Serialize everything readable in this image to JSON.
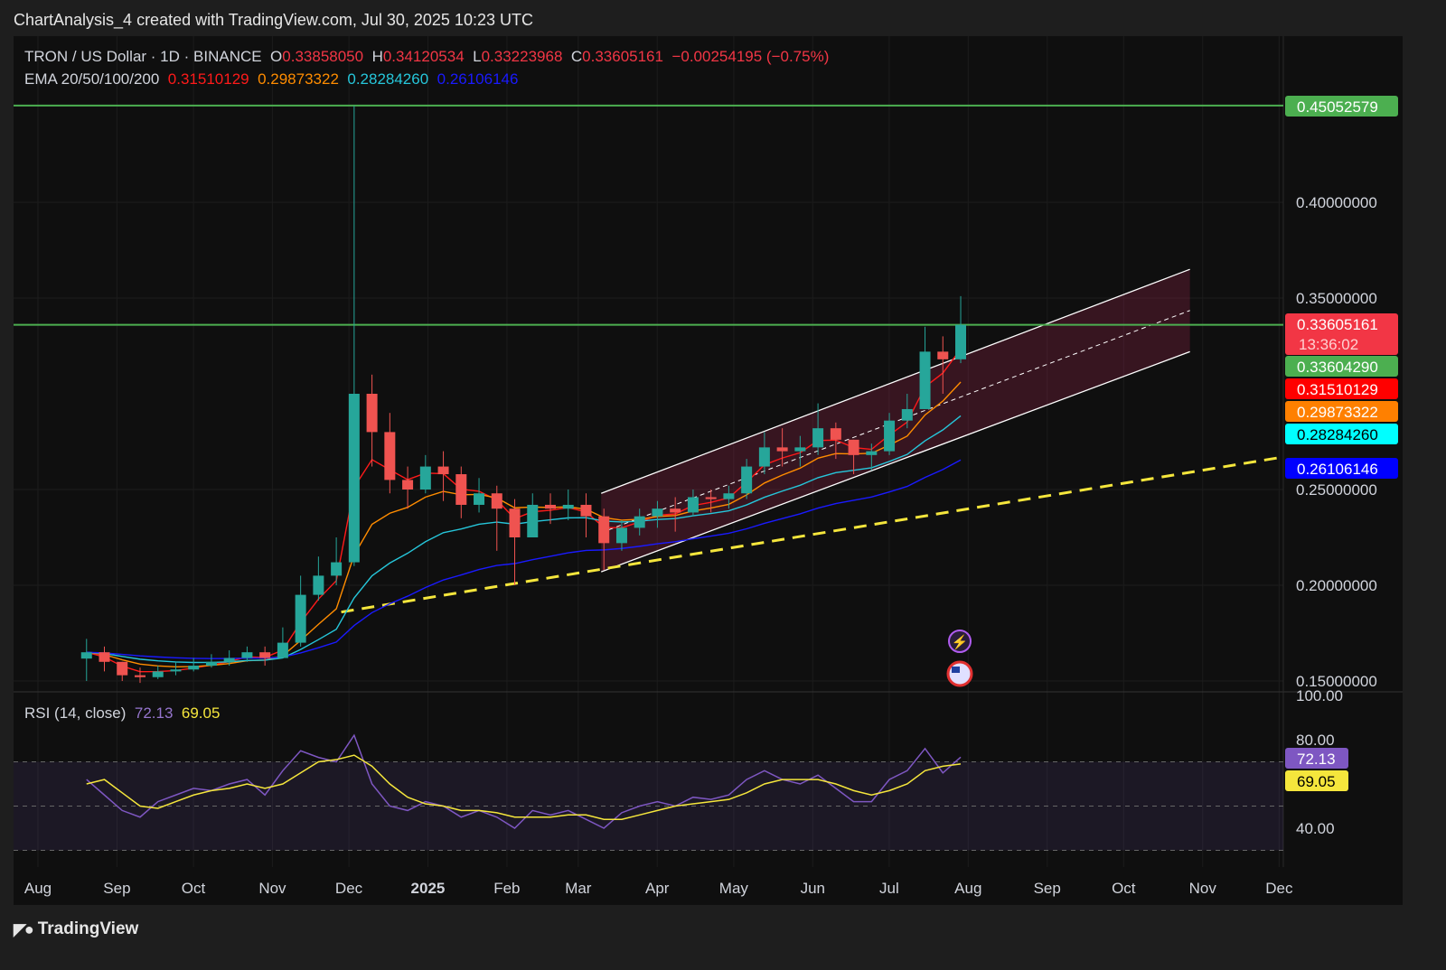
{
  "header": {
    "title": "ChartAnalysis_4 created with TradingView.com, Jul 30, 2025 10:23 UTC"
  },
  "legend": {
    "symbol": "TRON / US Dollar · 1D · BINANCE",
    "o_label": "O",
    "o": "0.33858050",
    "h_label": "H",
    "h": "0.34120534",
    "l_label": "L",
    "l": "0.33223968",
    "c_label": "C",
    "c": "0.33605161",
    "change": "−0.00254195 (−0.75%)",
    "ema_label": "EMA 20/50/100/200",
    "ema20": "0.31510129",
    "ema50": "0.29873322",
    "ema100": "0.28284260",
    "ema200": "0.26106146",
    "rsi_label": "RSI (14, close)",
    "rsi": "72.13",
    "rsi_ma": "69.05"
  },
  "footer": {
    "brand": "TradingView"
  },
  "colors": {
    "up": "#26a69a",
    "down": "#ef5350",
    "ema20": "#ff1a1a",
    "ema50": "#ff8c00",
    "ema100": "#26c6da",
    "ema200": "#1a1aff",
    "support": "#f5e63c",
    "level": "#4caf50",
    "rsi": "#7e57c2",
    "rsi_ma": "#f5e63c",
    "channel": "#ffffff"
  },
  "price_tags": [
    {
      "value": "0.45052579",
      "bg": "#4caf50",
      "fg": "#ffffff"
    },
    {
      "value": "0.33605161",
      "sub": "13:36:02",
      "bg": "#f23645",
      "fg": "#ffffff"
    },
    {
      "value": "0.33604290",
      "bg": "#4caf50",
      "fg": "#ffffff"
    },
    {
      "value": "0.31510129",
      "bg": "#ff0000",
      "fg": "#ffffff"
    },
    {
      "value": "0.29873322",
      "bg": "#ff8000",
      "fg": "#ffffff"
    },
    {
      "value": "0.28284260",
      "bg": "#00ffff",
      "fg": "#000000"
    },
    {
      "value": "0.26106146",
      "bg": "#0000ff",
      "fg": "#ffffff"
    }
  ],
  "rsi_tags": [
    {
      "value": "72.13",
      "bg": "#7e57c2",
      "fg": "#ffffff"
    },
    {
      "value": "69.05",
      "bg": "#f5e63c",
      "fg": "#000000"
    }
  ],
  "icons": [
    "lightning-event-icon",
    "us-flag-event-icon"
  ],
  "chart_data": {
    "type": "candlestick",
    "title": "TRON / US Dollar · 1D · BINANCE",
    "y_ticks": [
      "0.15000000",
      "0.20000000",
      "0.25000000",
      "0.35000000",
      "0.40000000"
    ],
    "x_ticks": [
      "Aug",
      "Sep",
      "Oct",
      "Nov",
      "Dec",
      "2025",
      "Feb",
      "Mar",
      "Apr",
      "May",
      "Jun",
      "Jul",
      "Aug",
      "Sep",
      "Oct",
      "Nov",
      "Dec"
    ],
    "ylim": [
      0.15,
      0.46
    ],
    "grid": true,
    "dates": [
      "2024-08-19",
      "2024-08-26",
      "2024-09-02",
      "2024-09-09",
      "2024-09-16",
      "2024-09-23",
      "2024-09-30",
      "2024-10-07",
      "2024-10-14",
      "2024-10-21",
      "2024-10-28",
      "2024-11-04",
      "2024-11-11",
      "2024-11-18",
      "2024-11-25",
      "2024-12-02",
      "2024-12-09",
      "2024-12-16",
      "2024-12-23",
      "2024-12-30",
      "2025-01-06",
      "2025-01-13",
      "2025-01-20",
      "2025-01-27",
      "2025-02-03",
      "2025-02-10",
      "2025-02-17",
      "2025-02-24",
      "2025-03-03",
      "2025-03-10",
      "2025-03-17",
      "2025-03-24",
      "2025-03-31",
      "2025-04-07",
      "2025-04-14",
      "2025-04-21",
      "2025-04-28",
      "2025-05-05",
      "2025-05-12",
      "2025-05-19",
      "2025-05-26",
      "2025-06-02",
      "2025-06-09",
      "2025-06-16",
      "2025-06-23",
      "2025-06-30",
      "2025-07-07",
      "2025-07-14",
      "2025-07-21",
      "2025-07-28"
    ],
    "close": [
      0.165,
      0.16,
      0.153,
      0.152,
      0.155,
      0.156,
      0.158,
      0.16,
      0.162,
      0.165,
      0.162,
      0.17,
      0.195,
      0.205,
      0.212,
      0.3,
      0.28,
      0.255,
      0.25,
      0.262,
      0.258,
      0.242,
      0.248,
      0.24,
      0.225,
      0.242,
      0.24,
      0.242,
      0.236,
      0.222,
      0.23,
      0.236,
      0.24,
      0.238,
      0.246,
      0.245,
      0.248,
      0.262,
      0.272,
      0.27,
      0.272,
      0.282,
      0.276,
      0.268,
      0.27,
      0.286,
      0.292,
      0.322,
      0.318,
      0.336
    ],
    "high": [
      0.172,
      0.168,
      0.16,
      0.157,
      0.158,
      0.16,
      0.162,
      0.164,
      0.166,
      0.168,
      0.168,
      0.178,
      0.205,
      0.215,
      0.225,
      0.4505,
      0.31,
      0.29,
      0.262,
      0.268,
      0.27,
      0.262,
      0.256,
      0.252,
      0.245,
      0.248,
      0.248,
      0.25,
      0.248,
      0.24,
      0.234,
      0.24,
      0.244,
      0.246,
      0.25,
      0.25,
      0.252,
      0.266,
      0.28,
      0.282,
      0.278,
      0.295,
      0.285,
      0.276,
      0.274,
      0.29,
      0.3,
      0.335,
      0.33,
      0.351
    ],
    "low": [
      0.15,
      0.155,
      0.15,
      0.149,
      0.151,
      0.153,
      0.155,
      0.157,
      0.158,
      0.16,
      0.158,
      0.162,
      0.168,
      0.192,
      0.2,
      0.21,
      0.262,
      0.248,
      0.24,
      0.248,
      0.244,
      0.235,
      0.238,
      0.218,
      0.2,
      0.225,
      0.232,
      0.234,
      0.225,
      0.208,
      0.218,
      0.226,
      0.23,
      0.228,
      0.236,
      0.238,
      0.24,
      0.245,
      0.258,
      0.262,
      0.262,
      0.268,
      0.266,
      0.258,
      0.26,
      0.268,
      0.282,
      0.292,
      0.3,
      0.316
    ],
    "horizontal_levels": [
      0.45052579,
      0.3360429
    ],
    "channel": {
      "start": "2025-03-10",
      "end": "2025-10-27",
      "upper": [
        0.248,
        0.365
      ],
      "lower": [
        0.207,
        0.322
      ]
    },
    "support_trendline": {
      "start": "2024-11-28",
      "end": "2025-12-10",
      "values": [
        0.186,
        0.267
      ]
    },
    "ema": {
      "labels": [
        "EMA 20",
        "EMA 50",
        "EMA 100",
        "EMA 200"
      ],
      "current": [
        0.31510129,
        0.29873322,
        0.2828426,
        0.26106146
      ]
    },
    "rsi": {
      "ylim": [
        20,
        100
      ],
      "y_ticks": [
        "40.00",
        "80.00",
        "100.00"
      ],
      "bands": [
        70,
        50,
        30
      ],
      "values": [
        62,
        55,
        48,
        45,
        52,
        55,
        58,
        57,
        60,
        62,
        55,
        66,
        75,
        72,
        70,
        82,
        60,
        50,
        48,
        52,
        50,
        45,
        48,
        45,
        40,
        48,
        46,
        48,
        44,
        40,
        47,
        50,
        52,
        50,
        54,
        53,
        55,
        62,
        66,
        62,
        60,
        64,
        58,
        52,
        52,
        62,
        66,
        76,
        65,
        72.13
      ],
      "ma": [
        60,
        62,
        56,
        50,
        49,
        52,
        55,
        57,
        58,
        60,
        58,
        60,
        65,
        70,
        71,
        73,
        68,
        60,
        54,
        51,
        50,
        48,
        48,
        47,
        45,
        45,
        45,
        46,
        46,
        44,
        44,
        46,
        48,
        50,
        51,
        52,
        53,
        56,
        60,
        62,
        62,
        62,
        60,
        57,
        55,
        57,
        60,
        66,
        68,
        69.05
      ]
    }
  }
}
